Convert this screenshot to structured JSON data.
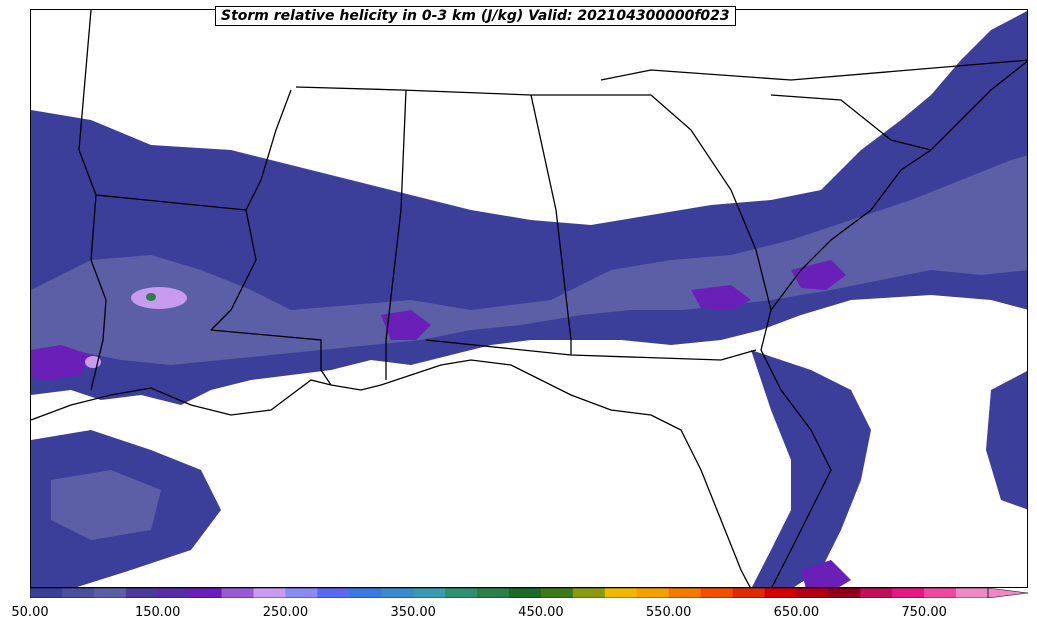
{
  "title": "Storm relative helicity in 0-3 km (J/kg) Valid: 202104300000f023",
  "colorbar": {
    "min": 50,
    "max": 800,
    "step": 25,
    "extend": "max",
    "tick_labels": [
      "50.00",
      "150.00",
      "250.00",
      "350.00",
      "450.00",
      "550.00",
      "650.00",
      "750.00"
    ],
    "tick_values": [
      50,
      150,
      250,
      350,
      450,
      550,
      650,
      750
    ],
    "colors": [
      "#3b3f9a",
      "#4a4f9f",
      "#5b5fa5",
      "#4b3a9a",
      "#5a2ba8",
      "#6a1fb8",
      "#9a5ad8",
      "#c89af0",
      "#8a8af5",
      "#5a6af0",
      "#3a7ae0",
      "#3a8ad0",
      "#3a9ab0",
      "#2f9070",
      "#2a8048",
      "#1a6a28",
      "#3a7a18",
      "#8a9a10",
      "#f0b800",
      "#f5a000",
      "#f57800",
      "#f05000",
      "#e02a00",
      "#d40000",
      "#b00010",
      "#900018",
      "#c0105a",
      "#e01a80",
      "#f048a0",
      "#f088c8"
    ]
  },
  "map": {
    "region": "Southeastern United States",
    "overlay_colors": {
      "low": "#3b3f9a",
      "mid": "#5b5fa5",
      "high": "#6a1fb8",
      "peak": "#c89af0",
      "max": "#2a8048"
    },
    "boundary_color": "#000000"
  }
}
